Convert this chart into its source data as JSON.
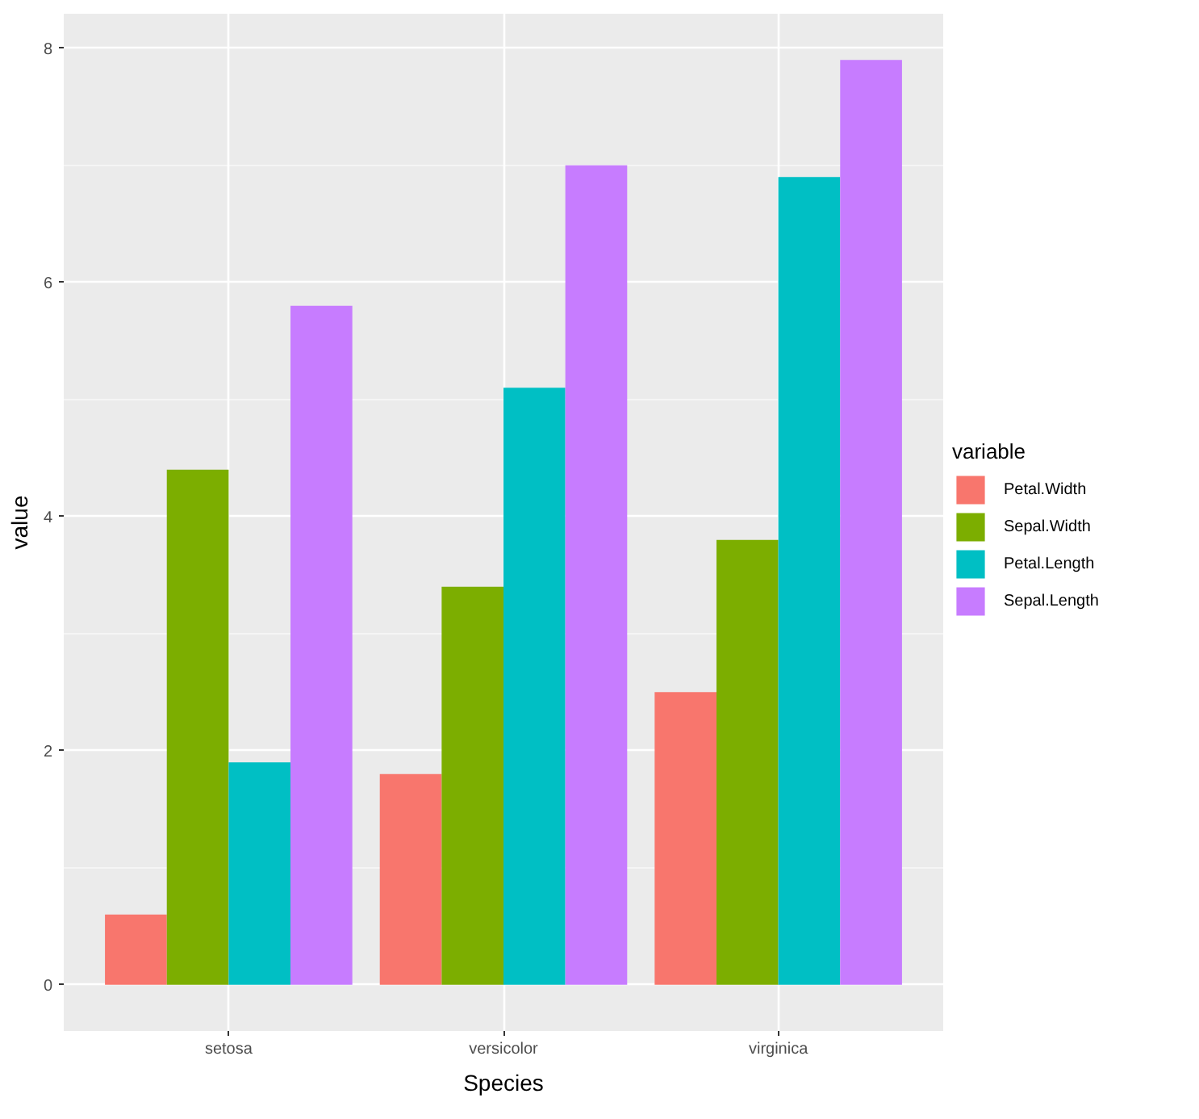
{
  "chart_data": {
    "type": "bar",
    "xlabel": "Species",
    "ylabel": "value",
    "legend_title": "variable",
    "categories": [
      "setosa",
      "versicolor",
      "virginica"
    ],
    "series": [
      {
        "name": "Petal.Width",
        "color": "#f8766d",
        "values": [
          0.6,
          1.8,
          2.5
        ]
      },
      {
        "name": "Sepal.Width",
        "color": "#7cae00",
        "values": [
          4.4,
          3.4,
          3.8
        ]
      },
      {
        "name": "Petal.Length",
        "color": "#00bfc4",
        "values": [
          1.9,
          5.1,
          6.9
        ]
      },
      {
        "name": "Sepal.Length",
        "color": "#c77cff",
        "values": [
          5.8,
          7.0,
          7.9
        ]
      }
    ],
    "ylim": [
      -0.395,
      8.295
    ],
    "yticks": [
      0,
      2,
      4,
      6,
      8
    ],
    "grid": true,
    "legend": "right"
  }
}
